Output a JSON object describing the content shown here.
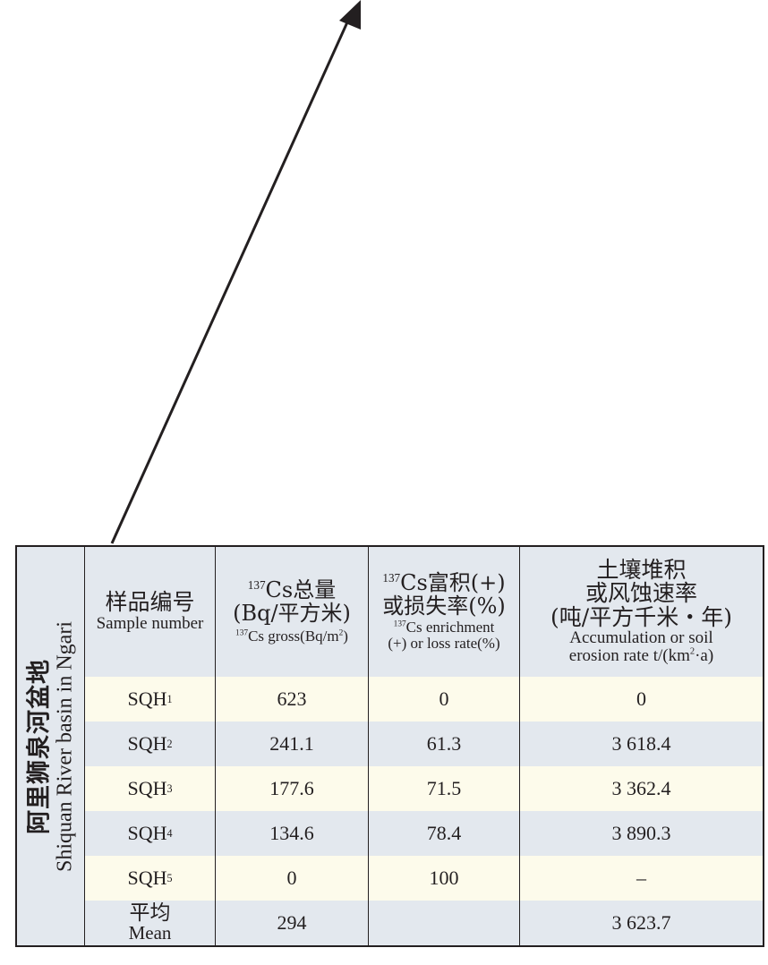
{
  "region": {
    "zh": "阿里狮泉河盆地",
    "en": "Shiquan River basin in Ngari"
  },
  "headers": {
    "sample_zh": "样品编号",
    "sample_en": "Sample number",
    "gross_zh_prefix": "137",
    "gross_zh_title": "Cs总量",
    "gross_zh_unit": "(Bq/平方米)",
    "gross_en_prefix": "137",
    "gross_en_a": "Cs gross(Bq/m",
    "gross_en_sup": "2",
    "gross_en_b": ")",
    "rate_zh_prefix": "137",
    "rate_zh_title": "Cs富积(+)",
    "rate_zh_sub": "或损失率(%)",
    "rate_en_prefix": "137",
    "rate_en_a": "Cs enrichment",
    "rate_en_b": "(+) or loss rate(%)",
    "accum_zh_1": "土壤堆积",
    "accum_zh_2": "或风蚀速率",
    "accum_zh_3": "(吨/平方千米・年)",
    "accum_en_1": "Accumulation or soil",
    "accum_en_2a": "erosion rate  t/(km",
    "accum_en_sup": "2",
    "accum_en_2b": "·a)"
  },
  "rows": [
    {
      "id": "SQH",
      "sub": "1",
      "gross": "623",
      "rate": "0",
      "accum": "0"
    },
    {
      "id": "SQH",
      "sub": "2",
      "gross": "241.1",
      "rate": "61.3",
      "accum": "3 618.4"
    },
    {
      "id": "SQH",
      "sub": "3",
      "gross": "177.6",
      "rate": "71.5",
      "accum": "3 362.4"
    },
    {
      "id": "SQH",
      "sub": "4",
      "gross": "134.6",
      "rate": "78.4",
      "accum": "3 890.3"
    },
    {
      "id": "SQH",
      "sub": "5",
      "gross": "0",
      "rate": "100",
      "accum": "–"
    }
  ],
  "mean": {
    "zh": "平均",
    "en": "Mean",
    "gross": "294",
    "rate": "",
    "accum": "3 623.7"
  }
}
